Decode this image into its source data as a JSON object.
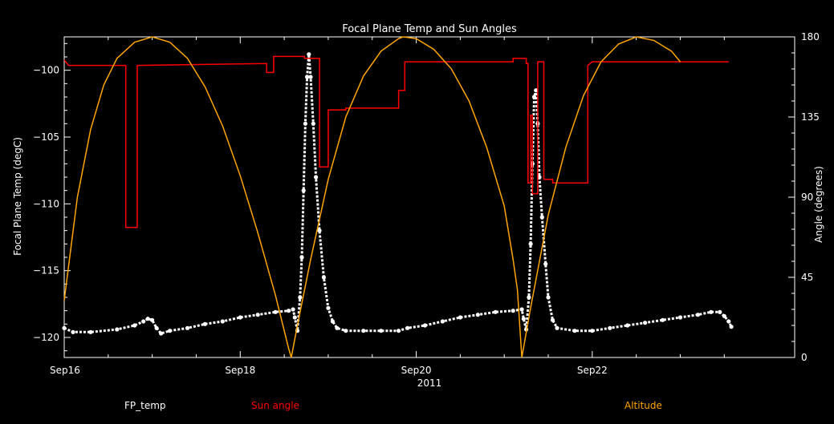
{
  "chart_data": {
    "type": "line",
    "title": "Focal Plane Temp and Sun Angles",
    "xlabel": "2011",
    "ylabel_left": "Focal Plane Temp (degC)",
    "ylabel_right": "Angle (degrees)",
    "x_units": "days since Sep16 00:00 2011",
    "xlim": [
      0,
      8.3
    ],
    "ylim_left": [
      -121.5,
      -97.5
    ],
    "ylim_right": [
      0,
      180
    ],
    "x_ticks": [
      {
        "value": 0,
        "label": "Sep16"
      },
      {
        "value": 2,
        "label": "Sep18"
      },
      {
        "value": 4,
        "label": "Sep20"
      },
      {
        "value": 6,
        "label": "Sep22"
      }
    ],
    "y_left_ticks": [
      {
        "value": -100,
        "label": "−100"
      },
      {
        "value": -105,
        "label": "−105"
      },
      {
        "value": -110,
        "label": "−110"
      },
      {
        "value": -115,
        "label": "−115"
      },
      {
        "value": -120,
        "label": "−120"
      }
    ],
    "y_right_ticks": [
      {
        "value": 0,
        "label": "0"
      },
      {
        "value": 45,
        "label": "45"
      },
      {
        "value": 90,
        "label": "90"
      },
      {
        "value": 135,
        "label": "135"
      },
      {
        "value": 180,
        "label": "180"
      }
    ],
    "legend": [
      {
        "label": "FP_temp",
        "color": "#ffffff"
      },
      {
        "label": "Sun angle",
        "color": "#ff0000"
      },
      {
        "label": "Altitude",
        "color": "#ffa500"
      }
    ],
    "series": [
      {
        "name": "FP_temp",
        "axis": "left",
        "color": "#ffffff",
        "style": "points",
        "points": [
          [
            0.0,
            -119.3
          ],
          [
            0.1,
            -119.6
          ],
          [
            0.3,
            -119.6
          ],
          [
            0.6,
            -119.4
          ],
          [
            0.8,
            -119.1
          ],
          [
            0.9,
            -118.8
          ],
          [
            0.95,
            -118.6
          ],
          [
            1.0,
            -118.7
          ],
          [
            1.05,
            -119.3
          ],
          [
            1.1,
            -119.7
          ],
          [
            1.2,
            -119.5
          ],
          [
            1.4,
            -119.3
          ],
          [
            1.6,
            -119.0
          ],
          [
            1.8,
            -118.8
          ],
          [
            2.0,
            -118.5
          ],
          [
            2.2,
            -118.3
          ],
          [
            2.4,
            -118.1
          ],
          [
            2.55,
            -118.0
          ],
          [
            2.6,
            -117.9
          ],
          [
            2.62,
            -118.5
          ],
          [
            2.65,
            -119.5
          ],
          [
            2.68,
            -117.0
          ],
          [
            2.7,
            -114.0
          ],
          [
            2.72,
            -109.0
          ],
          [
            2.74,
            -104.0
          ],
          [
            2.76,
            -100.5
          ],
          [
            2.78,
            -98.8
          ],
          [
            2.8,
            -100.5
          ],
          [
            2.83,
            -104.0
          ],
          [
            2.86,
            -108.0
          ],
          [
            2.9,
            -112.0
          ],
          [
            2.95,
            -115.5
          ],
          [
            3.0,
            -117.8
          ],
          [
            3.05,
            -118.8
          ],
          [
            3.1,
            -119.3
          ],
          [
            3.2,
            -119.5
          ],
          [
            3.4,
            -119.5
          ],
          [
            3.6,
            -119.5
          ],
          [
            3.8,
            -119.5
          ],
          [
            3.9,
            -119.3
          ],
          [
            4.1,
            -119.1
          ],
          [
            4.3,
            -118.8
          ],
          [
            4.5,
            -118.5
          ],
          [
            4.7,
            -118.3
          ],
          [
            4.9,
            -118.1
          ],
          [
            5.1,
            -118.0
          ],
          [
            5.2,
            -117.9
          ],
          [
            5.22,
            -118.6
          ],
          [
            5.25,
            -119.4
          ],
          [
            5.28,
            -117.0
          ],
          [
            5.3,
            -113.0
          ],
          [
            5.32,
            -107.0
          ],
          [
            5.34,
            -102.0
          ],
          [
            5.36,
            -101.5
          ],
          [
            5.38,
            -104.0
          ],
          [
            5.4,
            -108.0
          ],
          [
            5.43,
            -111.0
          ],
          [
            5.47,
            -114.5
          ],
          [
            5.5,
            -117.0
          ],
          [
            5.55,
            -118.7
          ],
          [
            5.6,
            -119.3
          ],
          [
            5.8,
            -119.5
          ],
          [
            6.0,
            -119.5
          ],
          [
            6.2,
            -119.3
          ],
          [
            6.4,
            -119.1
          ],
          [
            6.6,
            -118.9
          ],
          [
            6.8,
            -118.7
          ],
          [
            7.0,
            -118.5
          ],
          [
            7.2,
            -118.3
          ],
          [
            7.35,
            -118.1
          ],
          [
            7.45,
            -118.1
          ],
          [
            7.5,
            -118.4
          ],
          [
            7.55,
            -118.8
          ],
          [
            7.58,
            -119.2
          ]
        ]
      },
      {
        "name": "Sun angle",
        "axis": "right",
        "color": "#ff0000",
        "style": "line",
        "points": [
          [
            0.0,
            167
          ],
          [
            0.05,
            164
          ],
          [
            0.7,
            164
          ],
          [
            0.7,
            73
          ],
          [
            0.83,
            73
          ],
          [
            0.83,
            164
          ],
          [
            2.3,
            165
          ],
          [
            2.3,
            160
          ],
          [
            2.38,
            160
          ],
          [
            2.38,
            169
          ],
          [
            2.73,
            169
          ],
          [
            2.73,
            168
          ],
          [
            2.9,
            168
          ],
          [
            2.9,
            107
          ],
          [
            3.0,
            107
          ],
          [
            3.0,
            139
          ],
          [
            3.2,
            139
          ],
          [
            3.2,
            140
          ],
          [
            3.8,
            140
          ],
          [
            3.8,
            150
          ],
          [
            3.87,
            150
          ],
          [
            3.87,
            166
          ],
          [
            5.1,
            166
          ],
          [
            5.1,
            168
          ],
          [
            5.25,
            168
          ],
          [
            5.25,
            165
          ],
          [
            5.27,
            165
          ],
          [
            5.27,
            98
          ],
          [
            5.3,
            98
          ],
          [
            5.3,
            136
          ],
          [
            5.32,
            136
          ],
          [
            5.32,
            92
          ],
          [
            5.38,
            92
          ],
          [
            5.38,
            166
          ],
          [
            5.45,
            166
          ],
          [
            5.45,
            100
          ],
          [
            5.55,
            100
          ],
          [
            5.55,
            98
          ],
          [
            5.95,
            98
          ],
          [
            5.95,
            164
          ],
          [
            6.0,
            166
          ],
          [
            7.55,
            166
          ]
        ]
      },
      {
        "name": "Altitude",
        "axis": "right",
        "color": "#ffa500",
        "style": "line",
        "points": [
          [
            0.0,
            32
          ],
          [
            0.15,
            90
          ],
          [
            0.3,
            128
          ],
          [
            0.45,
            153
          ],
          [
            0.6,
            168
          ],
          [
            0.8,
            177
          ],
          [
            1.0,
            180
          ],
          [
            1.2,
            177
          ],
          [
            1.4,
            168
          ],
          [
            1.6,
            152
          ],
          [
            1.8,
            130
          ],
          [
            2.0,
            102
          ],
          [
            2.2,
            70
          ],
          [
            2.4,
            35
          ],
          [
            2.55,
            5
          ],
          [
            2.58,
            0
          ],
          [
            2.65,
            18
          ],
          [
            2.8,
            55
          ],
          [
            3.0,
            100
          ],
          [
            3.2,
            135
          ],
          [
            3.4,
            158
          ],
          [
            3.6,
            172
          ],
          [
            3.8,
            179
          ],
          [
            3.85,
            180
          ],
          [
            4.0,
            179
          ],
          [
            4.2,
            173
          ],
          [
            4.4,
            162
          ],
          [
            4.6,
            144
          ],
          [
            4.8,
            118
          ],
          [
            5.0,
            85
          ],
          [
            5.1,
            55
          ],
          [
            5.15,
            38
          ],
          [
            5.2,
            0
          ],
          [
            5.3,
            28
          ],
          [
            5.5,
            80
          ],
          [
            5.7,
            118
          ],
          [
            5.9,
            147
          ],
          [
            6.1,
            166
          ],
          [
            6.3,
            176
          ],
          [
            6.5,
            180
          ],
          [
            6.7,
            178
          ],
          [
            6.9,
            172
          ],
          [
            7.0,
            166
          ]
        ]
      }
    ]
  }
}
